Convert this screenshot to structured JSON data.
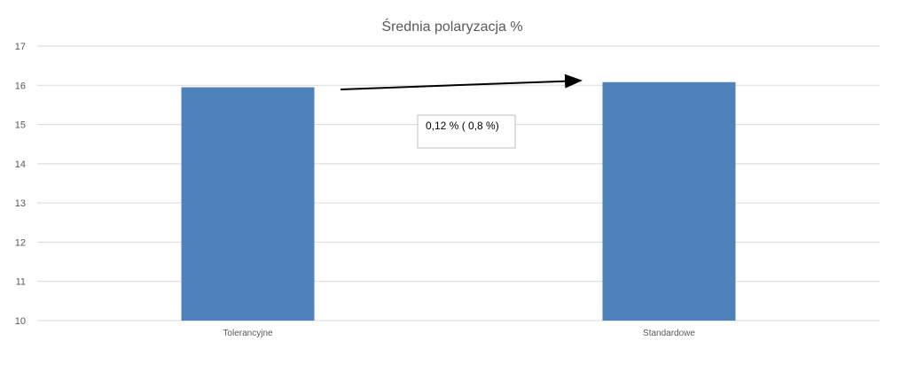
{
  "chart_data": {
    "type": "bar",
    "title": "Średnia polaryzacja %",
    "categories": [
      "Tolerancyjne",
      "Standardowe"
    ],
    "values": [
      15.95,
      16.08
    ],
    "ylim": [
      10,
      17
    ],
    "yticks": [
      "10",
      "11",
      "12",
      "13",
      "14",
      "15",
      "16",
      "17"
    ],
    "xlabel": "",
    "ylabel": "",
    "grid": true,
    "legend": "none",
    "bar_color": "#4f81bd",
    "annotation": {
      "text": "0,12 % ( 0,8 %)",
      "arrow": "from Tolerancyjne to Standardowe"
    }
  }
}
